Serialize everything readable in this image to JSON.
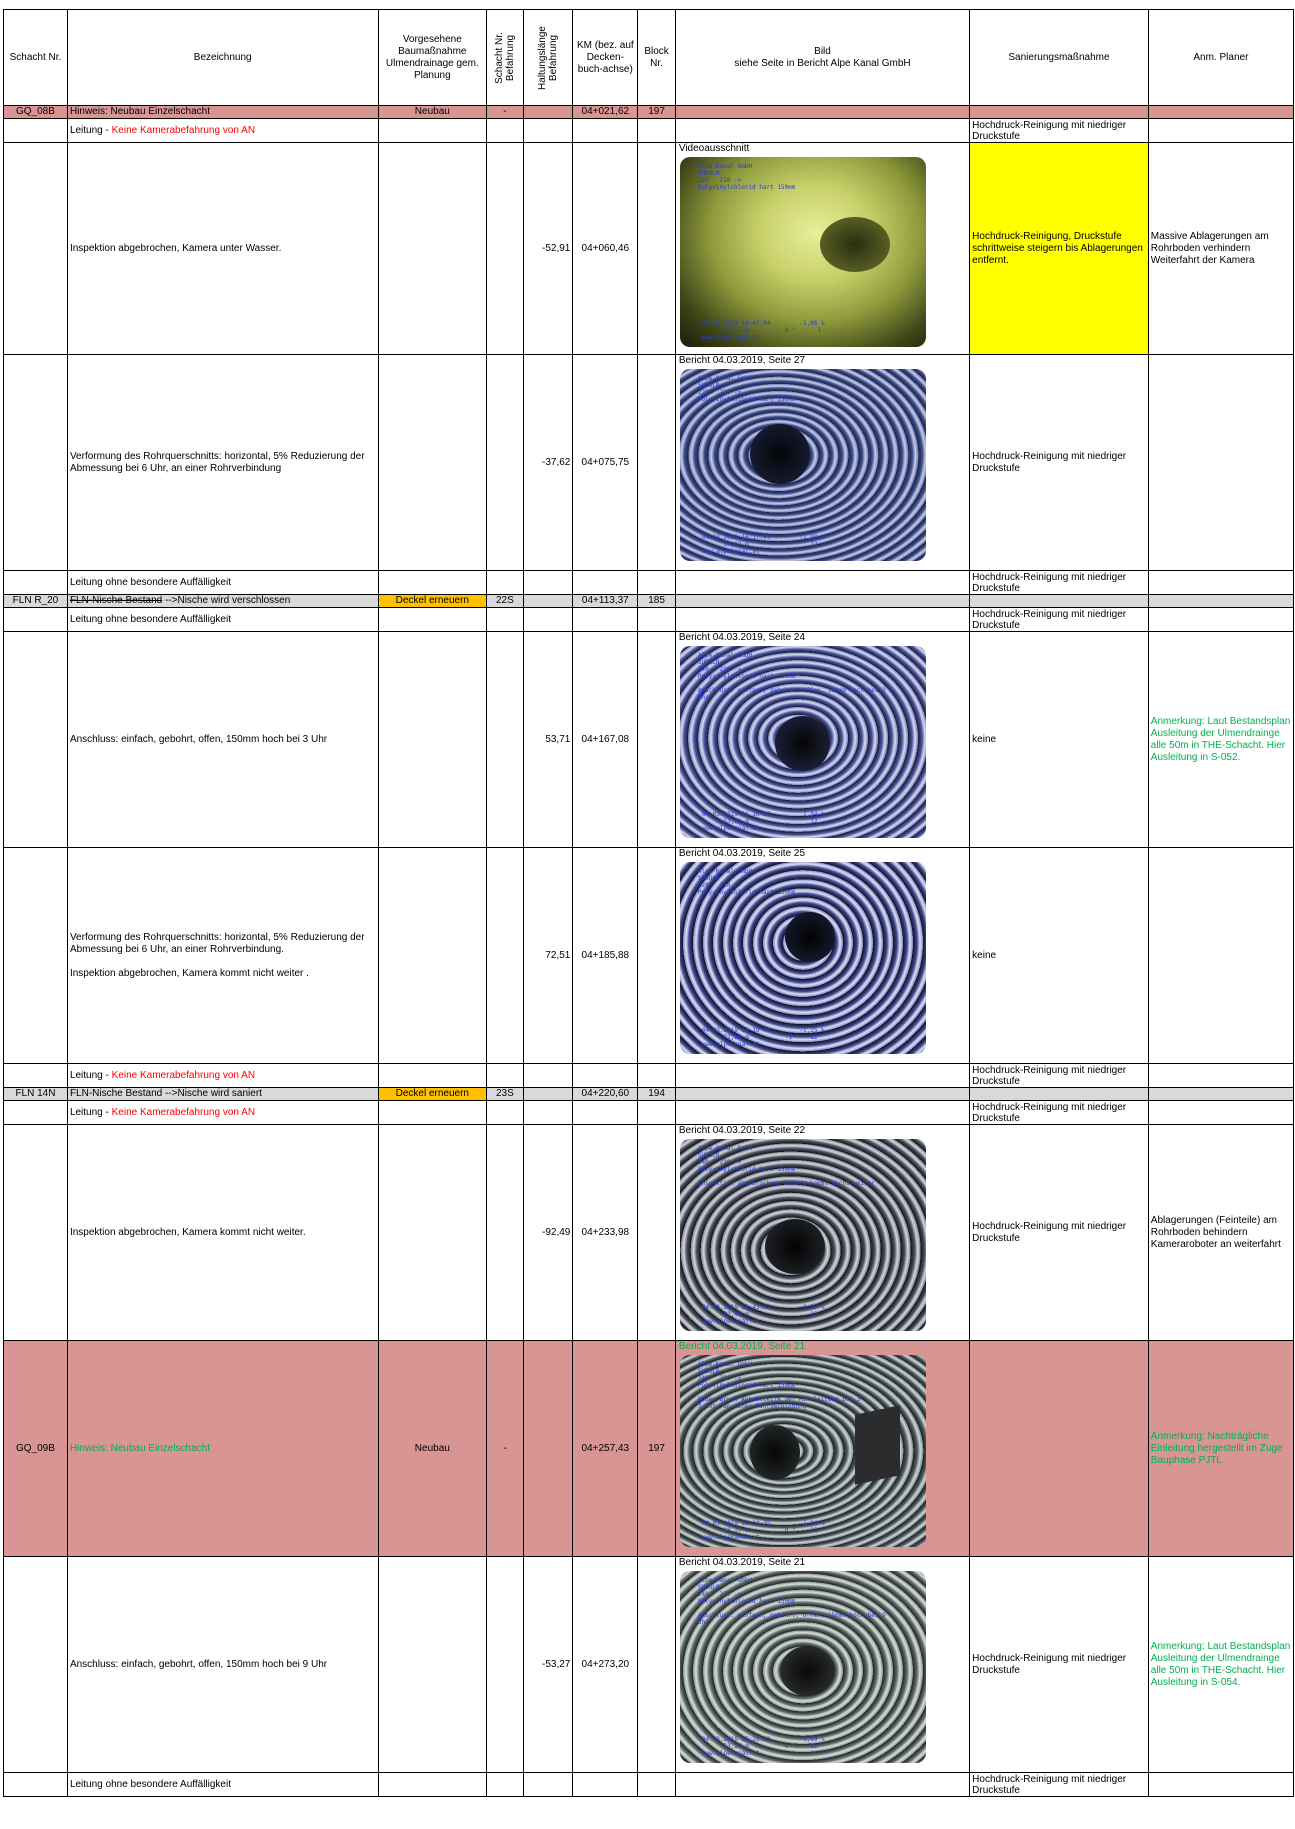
{
  "header": {
    "schacht": "Schacht Nr.",
    "bezeichnung": "Bezeichnung",
    "vorgesehene": "Vorgesehene Baumaßnahme Ulmendrainage gem. Planung",
    "schacht_befahrung": "Schacht Nr. Befahrung",
    "haltungslaenge": "Haltungslänge Befahrung",
    "km": "KM (bez. auf Decken-buch-achse)",
    "block": "Block Nr.",
    "bild_l1": "Bild",
    "bild_l2": "siehe Seite in Bericht Alpe Kanal GmbH",
    "sanierung": "Sanierungsmaßnahme",
    "anm": "Anm. Planer"
  },
  "rows": {
    "r1": {
      "schacht": "GQ_08B",
      "bez": "Hinweis: Neubau Einzelschacht",
      "vorg": "Neubau",
      "sb": "-",
      "km": "04+021,62",
      "block": "197"
    },
    "r2": {
      "bez_prefix": "Leitung - ",
      "bez_red": "Keine Kamerabefahrung von AN",
      "san": "Hochdruck-Reinigung mit niedriger Druckstufe"
    },
    "r3": {
      "bez": "Inspektion abgebrochen, Kamera unter Wasser.",
      "hl": "-52,91",
      "km": "04+060,46",
      "caption": "Videoausschnitt",
      "san": "Hochdruck-Reinigung, Druckstufe schrittweise steigern bis Ablagerungen entfernt.",
      "anm": "Massive Ablagerungen am Rohrboden verhindern Weiterfahrt der Kamera",
      "osd_top": "Alpe-Kanal GmbH\nSUDOLR\n220   210 ->\nPolyvinylchlorid hart 150mm",
      "osd_bottom": "04.02.2019 16:47:04        -1,86 %\n      52,52 m          0 °      1\nwww.alpekanal.at"
    },
    "r4": {
      "bez": "Verformung des Rohrquerschnitts: horizontal, 5% Reduzierung der Abmessung bei 6 Uhr, an einer Rohrverbindung",
      "hl": "-37,62",
      "km": "04+075,75",
      "caption": "Bericht 04.03.2019, Seite 27",
      "san": "Hochdruck-Reinigung mit niedriger Druckstufe",
      "osd_top": "Alpe-Kanal GmbH\nSUDOLR\n220   210 ->\nPolyvinylchlorid hart 150mm",
      "osd_bottom": "04.03.2019 16:17:49        -1,98 %\n      37,62 m                 12\nwww.alpekanal.at"
    },
    "r5": {
      "bez": "Leitung ohne besondere Auffälligkeit",
      "san": "Hochdruck-Reinigung mit niedriger Druckstufe"
    },
    "r6": {
      "schacht": "FLN R_20",
      "bez_strike": "FLN-Nische Bestand",
      "bez_rest": " -->Nische wird verschlossen",
      "vorg": "Deckel erneuern",
      "sb": "22S",
      "km": "04+113,37",
      "block": "185"
    },
    "r7": {
      "bez": "Leitung ohne besondere Auffälligkeit",
      "san": "Hochdruck-Reinigung mit niedriger Druckstufe"
    },
    "r8": {
      "bez": "Anschluss: einfach, gebohrt, offen, 150mm hoch bei 3 Uhr",
      "hl": "53,71",
      "km": "04+167,08",
      "caption": "Bericht 04.03.2019, Seite 24",
      "san": "keine",
      "anm": "Anmerkung: Laut Bestandsplan Ausleitung der Ulmendrainge alle 50m in THE-Schacht. Hier Ausleitung in S-052.",
      "osd_top": "Alpe-Kanal GmbH\nSUDOLR\n220   210 ->\nPolyvinylchlorid hart 150mm\n\nAnschluss: einfach, gebohrt, offen, 150mm hoch bei 3\nUhr",
      "osd_bottom": "04.03.2019 16 16 37         1,94 %\n      53,71 m                 12\nwww.alpekanal.at"
    },
    "r9": {
      "bez1": "Verformung des Rohrquerschnitts: horizontal, 5% Reduzierung der Abmessung bei 6 Uhr, an einer Rohrverbindung.",
      "bez2": "Inspektion abgebrochen, Kamera kommt nicht weiter .",
      "hl": "72,51",
      "km": "04+185,88",
      "caption": "Bericht 04.03.2019, Seite 25",
      "san": "keine",
      "osd_top": "Alpe-Kanal GmbH\nSUDOLR\n220   210 ->\nPolyvinylchlorid hart 150mm",
      "osd_bottom": "04.03.2019 16 19 49        -1,25 %\n      71,60 m          -1 °   12\nwww.alpekanal.at"
    },
    "r10": {
      "bez_prefix": "Leitung - ",
      "bez_red": "Keine Kamerabefahrung von AN",
      "san": "Hochdruck-Reinigung mit niedriger Druckstufe"
    },
    "r11": {
      "schacht": "FLN 14N",
      "bez": "FLN-Nische Bestand -->Nische wird saniert",
      "vorg": "Deckel erneuern",
      "sb": "23S",
      "km": "04+220,60",
      "block": "194"
    },
    "r12": {
      "bez_prefix": "Leitung - ",
      "bez_red": "Keine Kamerabefahrung von AN",
      "san": "Hochdruck-Reinigung mit niedriger Druckstufe"
    },
    "r13": {
      "bez": "Inspektion abgebrochen, Kamera kommt nicht weiter.",
      "hl": "-92,49",
      "km": "04+233,98",
      "caption": "Bericht 04.03.2019, Seite 22",
      "san": "Hochdruck-Reinigung mit niedriger Druckstufe",
      "anm": "Ablagerungen (Feinteile) am Rohrboden behindern Kameraroboter an weiterfahrt",
      "osd_top": "Alpe-Kanal GmbH\nSUDOLR\n240   230 ->\nPolyvinylchlorid hart 150mm\n\nInspektion abgebrochen, Kamera kommt nicht weiter",
      "osd_bottom": "04.03.2019 15:43:52        -0,57 %\n      92,49 m                 12\nwww.alpekanal.at"
    },
    "r14": {
      "schacht": "GQ_09B",
      "bez": "Hinweis: Neubau Einzelschacht",
      "vorg": "Neubau",
      "sb": "-",
      "km": "04+257,43",
      "block": "197",
      "caption": "Bericht 04.03.2019, Seite 21",
      "anm": "Anmerkung: Nachträgliche Einleitung hergestellt im Zuge Bauphase PJTL",
      "osd_top": "Alpe-Kanal GmbH\nSUDOLR\n240   230 ->\nPolyvinylchlorid hart 150mm\n\nBoden Bruch Abkabtteile der Rohrleitung bei 3\n3 Uhr, an einer Rohrverbindung",
      "osd_bottom": "04.03.2019 15 34 35        -1,84 %\n      48,37 m          0 °    12\nwww.alpekanal.at"
    },
    "r15": {
      "bez": "Anschluss: einfach, gebohrt, offen, 150mm hoch bei 9 Uhr",
      "hl": "-53,27",
      "km": "04+273,20",
      "caption": "Bericht 04.03.2019, Seite 21",
      "san": "Hochdruck-Reinigung mit niedriger Druckstufe",
      "anm": "Anmerkung: Laut Bestandsplan Ausleitung der Ulmendrainge alle 50m in THE-Schacht. Hier Ausleitung in S-054.",
      "osd_top": "Alpe-Kanal GmbH\nSUDOLR\n240   230 ->\nPolyvinylchlorid hart 150mm\n\nAnschluss: einfach, gebohrt, offen, 150mm hoch bei 9\nUhr",
      "osd_bottom": "04.03.2019 15:28:12        -1,69 %\n      53,27 m          0 °    12\nwww.alpekanal.at"
    },
    "r16": {
      "bez": "Leitung ohne besondere Auffälligkeit",
      "san": "Hochdruck-Reinigung mit niedriger Druckstufe"
    }
  },
  "colors": {
    "pink": "#d99594",
    "grey": "#d9d9d9",
    "orange": "#ffc000",
    "yellow": "#ffff00",
    "red_text": "#ff0000",
    "green_text": "#00b050",
    "osd_text": "#2a3cd8"
  }
}
